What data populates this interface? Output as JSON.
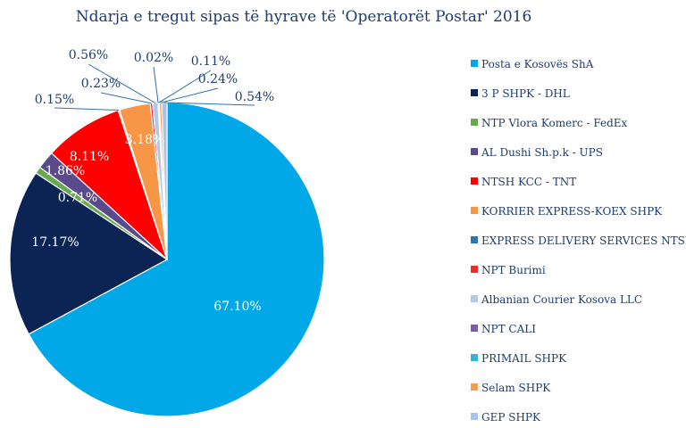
{
  "chart_data": {
    "type": "pie",
    "title": "Ndarja e tregut sipas të hyrave të 'Operatorët Postar' 2016",
    "slices": [
      {
        "label": "Posta e Kosovës ShA",
        "value": 67.1,
        "display": "67.10%",
        "color": "#00a8e8"
      },
      {
        "label": "3 P SHPK - DHL",
        "value": 17.17,
        "display": "17.17%",
        "color": "#0b2454"
      },
      {
        "label": "NTP Vlora Komerc - FedEx",
        "value": 0.71,
        "display": "0.71%",
        "color": "#6aa84f"
      },
      {
        "label": "AL Dushi Sh.p.k - UPS",
        "value": 1.86,
        "display": "1.86%",
        "color": "#5b4a8b"
      },
      {
        "label": "NTSH KCC  - TNT",
        "value": 8.11,
        "display": "8.11%",
        "color": "#ff0000"
      },
      {
        "label": "KORRIER EXPRESS-KOEX SHPK",
        "value": 0.15,
        "display": "0.15%",
        "color": "#f79646"
      },
      {
        "label": "EXPRESS DELIVERY SERVICES NTSH",
        "value": 3.18,
        "display": "3.18%",
        "color": "#f79646"
      },
      {
        "label": "NPT Burimi",
        "value": 0.23,
        "display": "0.23%",
        "color": "#d9262e"
      },
      {
        "label": "Albanian Courier Kosova LLC",
        "value": 0.56,
        "display": "0.56%",
        "color": "#b4c7e7"
      },
      {
        "label": "NPT CALI",
        "value": 0.02,
        "display": "0.02%",
        "color": "#7b5ea7"
      },
      {
        "label": "PRIMAIL SHPK",
        "value": 0.11,
        "display": "0.11%",
        "color": "#31b4cf"
      },
      {
        "label": "Selam SHPK",
        "value": 0.24,
        "display": "0.24%",
        "color": "#f0a050"
      },
      {
        "label": "GEP SHPK",
        "value": 0.54,
        "display": "0.54%",
        "color": "#a9c4eb"
      }
    ],
    "legend": {
      "placement": "right",
      "entries": [
        {
          "label": "Posta e Kosovës ShA",
          "color": "#00a8e8"
        },
        {
          "label": "3 P SHPK - DHL",
          "color": "#0b2454"
        },
        {
          "label": "NTP Vlora Komerc - FedEx",
          "color": "#6aa84f"
        },
        {
          "label": "AL Dushi Sh.p.k - UPS",
          "color": "#5b4a8b"
        },
        {
          "label": "NTSH KCC  - TNT",
          "color": "#ff0000"
        },
        {
          "label": "KORRIER EXPRESS-KOEX SHPK",
          "color": "#f79646"
        },
        {
          "label": "EXPRESS DELIVERY SERVICES NTSH",
          "color": "#2e75b6"
        },
        {
          "label": "NPT Burimi",
          "color": "#e8312a"
        },
        {
          "label": "Albanian Courier Kosova LLC",
          "color": "#b4c7e7"
        },
        {
          "label": "NPT CALI",
          "color": "#7b5ea7"
        },
        {
          "label": "PRIMAIL SHPK",
          "color": "#31b4cf"
        },
        {
          "label": "Selam SHPK",
          "color": "#f0a050"
        },
        {
          "label": "GEP SHPK",
          "color": "#a9c4eb"
        }
      ]
    }
  }
}
